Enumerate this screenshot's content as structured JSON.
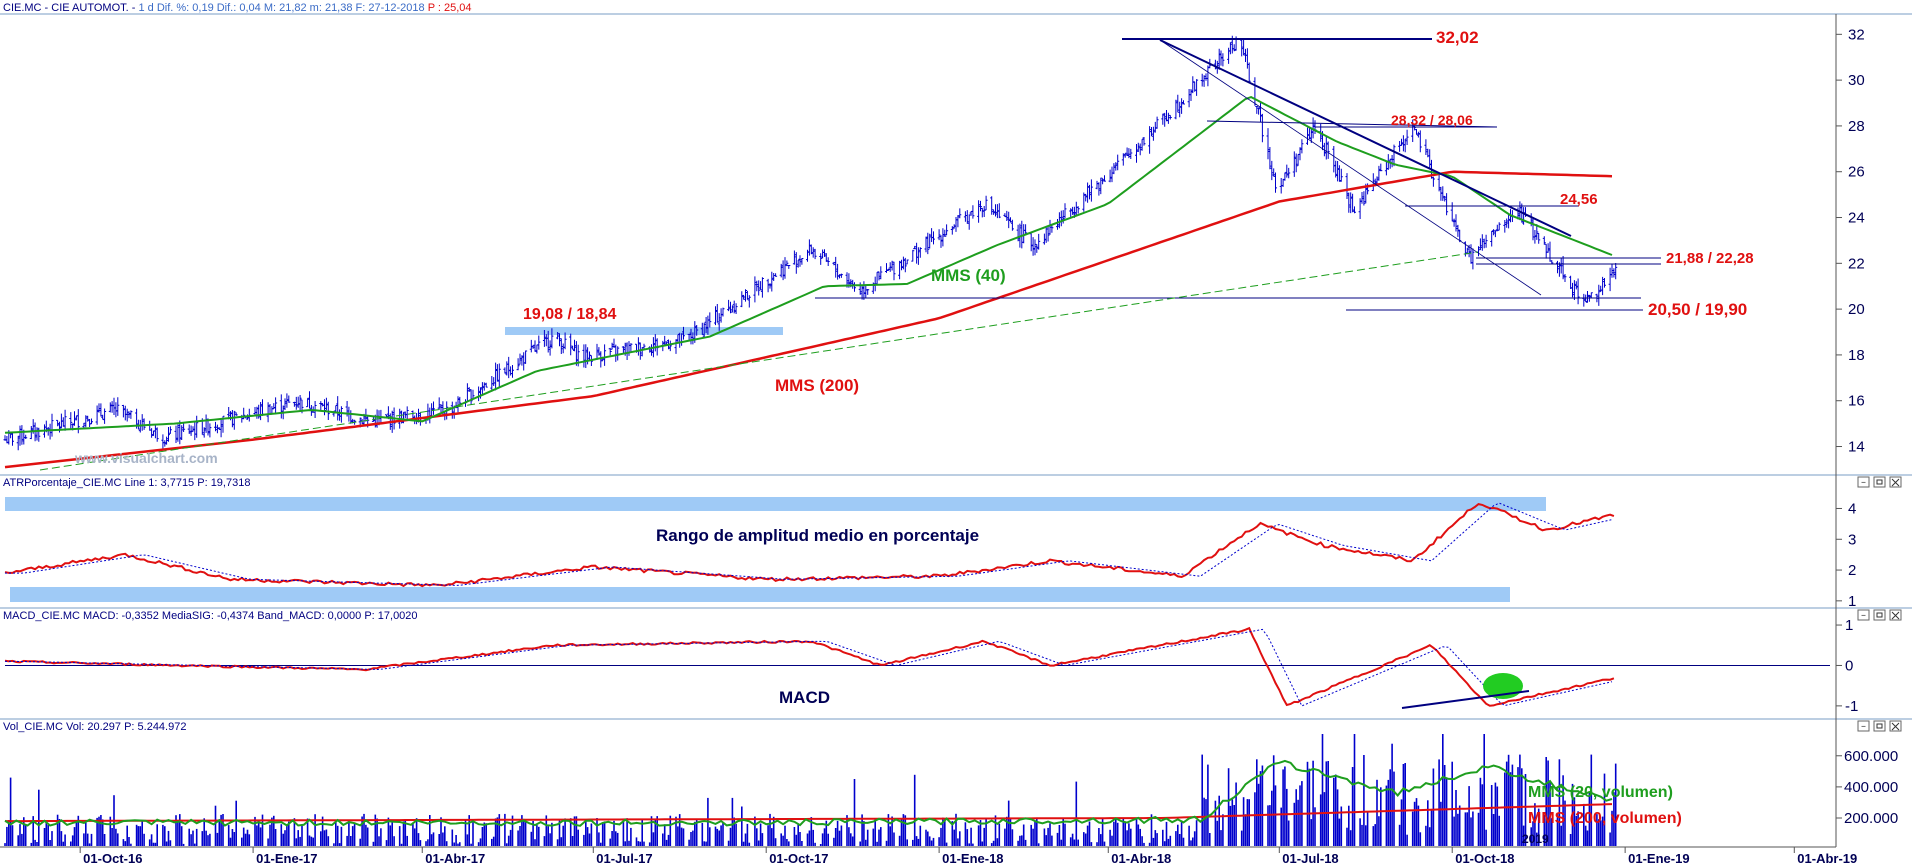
{
  "panels": {
    "price": {
      "header": {
        "ticker": "CIE.MC - CIE AUTOMOT. -",
        "stats": " 1 d  Dif. %: 0,19  Dif.: 0,04  M: 21,82  m: 21,38  F: 27-12-2018",
        "close": "  P : 25,04"
      },
      "watermark": "www.visualchart.com",
      "y_ticks": [
        "14",
        "16",
        "18",
        "20",
        "22",
        "24",
        "26",
        "28",
        "30",
        "32"
      ]
    },
    "atr": {
      "header": {
        "label": "ATRPorcentaje_CIE.MC  Line 1: 3,7715",
        "close": "  P: 19,7318"
      },
      "y_ticks": [
        "1",
        "2",
        "3",
        "4"
      ]
    },
    "macd": {
      "header": {
        "label": "MACD_CIE.MC  MACD: -0,3352  MediaSIG: -0,4374  Band_MACD: 0,0000",
        "close": "  P: 17,0020"
      },
      "y_ticks": [
        "-1",
        "0",
        "1"
      ]
    },
    "vol": {
      "header": {
        "label": "Vol_CIE.MC  Vol: 20.297",
        "close": "  P: 5.244.972"
      },
      "y_ticks": [
        "200.000",
        "400.000",
        "600.000"
      ],
      "year_label": "2019"
    }
  },
  "x_axis": {
    "labels": [
      "01-Oct-16",
      "01-Ene-17",
      "01-Abr-17",
      "01-Jul-17",
      "01-Oct-17",
      "01-Ene-18",
      "01-Abr-18",
      "01-Jul-18",
      "01-Oct-18",
      "01-Ene-19",
      "01-Abr-19"
    ]
  },
  "annotations": {
    "peak": "32,02",
    "res1": "28,32 / 28,06",
    "res2": "24,56",
    "res3": "21,88 / 22,28",
    "sup1": "20,50 / 19,90",
    "sup_old": "19,08 / 18,84",
    "mms40": "MMS (40)",
    "mms200": "MMS (200)",
    "atr_title": "Rango de amplitud medio en porcentaje",
    "macd_title": "MACD",
    "vol20": "MMS (20, volumen)",
    "vol200": "MMS (200, volumen)"
  },
  "colors": {
    "bars": "#0000cc",
    "mms40": "#1e9e1e",
    "mms200": "#e01010",
    "annotation": "#e01010",
    "band": "#9fcaf6",
    "axis_text": "#000055"
  },
  "chart_data": [
    {
      "type": "ohlc",
      "ylim": [
        12.8,
        32.8
      ],
      "x_range": [
        "2016-08-22",
        "2019-04-20"
      ],
      "key_points": [
        {
          "date": "2016-08-22",
          "close": 14.3
        },
        {
          "date": "2016-10-20",
          "close": 15.6
        },
        {
          "date": "2016-11-15",
          "close": 14.4
        },
        {
          "date": "2017-01-25",
          "close": 16.0
        },
        {
          "date": "2017-03-05",
          "close": 15.1
        },
        {
          "date": "2017-04-15",
          "close": 15.6
        },
        {
          "date": "2017-06-10",
          "close": 18.8
        },
        {
          "date": "2017-06-25",
          "close": 17.9
        },
        {
          "date": "2017-08-20",
          "close": 18.7
        },
        {
          "date": "2017-10-05",
          "close": 21.5
        },
        {
          "date": "2017-10-25",
          "close": 22.6
        },
        {
          "date": "2017-11-20",
          "close": 20.8
        },
        {
          "date": "2018-01-25",
          "close": 24.6
        },
        {
          "date": "2018-02-20",
          "close": 22.8
        },
        {
          "date": "2018-04-15",
          "close": 27.0
        },
        {
          "date": "2018-06-10",
          "close": 31.8
        },
        {
          "date": "2018-06-30",
          "close": 25.2
        },
        {
          "date": "2018-07-20",
          "close": 28.0
        },
        {
          "date": "2018-08-10",
          "close": 24.3
        },
        {
          "date": "2018-09-10",
          "close": 28.0
        },
        {
          "date": "2018-09-25",
          "close": 25.0
        },
        {
          "date": "2018-10-10",
          "close": 22.2
        },
        {
          "date": "2018-11-05",
          "close": 24.3
        },
        {
          "date": "2018-11-30",
          "close": 21.5
        },
        {
          "date": "2018-12-10",
          "close": 20.3
        },
        {
          "date": "2018-12-27",
          "close": 21.6
        }
      ],
      "mms40": [
        {
          "date": "2016-08-22",
          "value": 14.6
        },
        {
          "date": "2016-11-20",
          "value": 15.0
        },
        {
          "date": "2017-02-01",
          "value": 15.6
        },
        {
          "date": "2017-04-01",
          "value": 15.1
        },
        {
          "date": "2017-06-01",
          "value": 17.3
        },
        {
          "date": "2017-08-01",
          "value": 18.3
        },
        {
          "date": "2017-09-01",
          "value": 18.8
        },
        {
          "date": "2017-11-01",
          "value": 21.0
        },
        {
          "date": "2017-12-15",
          "value": 21.1
        },
        {
          "date": "2018-02-01",
          "value": 22.8
        },
        {
          "date": "2018-04-01",
          "value": 24.6
        },
        {
          "date": "2018-06-15",
          "value": 29.3
        },
        {
          "date": "2018-08-01",
          "value": 27.3
        },
        {
          "date": "2018-09-01",
          "value": 26.3
        },
        {
          "date": "2018-10-01",
          "value": 25.8
        },
        {
          "date": "2018-11-01",
          "value": 24.1
        },
        {
          "date": "2018-12-27",
          "value": 22.3
        }
      ],
      "mms200": [
        {
          "date": "2016-08-22",
          "value": 13.1
        },
        {
          "date": "2017-01-01",
          "value": 14.3
        },
        {
          "date": "2017-07-01",
          "value": 16.2
        },
        {
          "date": "2018-01-01",
          "value": 19.6
        },
        {
          "date": "2018-07-01",
          "value": 24.7
        },
        {
          "date": "2018-10-01",
          "value": 26.0
        },
        {
          "date": "2018-12-27",
          "value": 25.8
        }
      ]
    },
    {
      "type": "line",
      "name": "ATRPorcentaje_CIE.MC",
      "ylim": [
        0.8,
        4.6
      ],
      "points": [
        {
          "date": "2016-08-22",
          "value": 1.9
        },
        {
          "date": "2016-10-25",
          "value": 2.5
        },
        {
          "date": "2016-12-20",
          "value": 1.7
        },
        {
          "date": "2017-04-10",
          "value": 1.5
        },
        {
          "date": "2017-07-01",
          "value": 2.1
        },
        {
          "date": "2017-10-01",
          "value": 1.7
        },
        {
          "date": "2018-01-01",
          "value": 1.8
        },
        {
          "date": "2018-03-01",
          "value": 2.3
        },
        {
          "date": "2018-05-10",
          "value": 1.8
        },
        {
          "date": "2018-06-20",
          "value": 3.5
        },
        {
          "date": "2018-07-25",
          "value": 2.8
        },
        {
          "date": "2018-09-10",
          "value": 2.3
        },
        {
          "date": "2018-10-15",
          "value": 4.2
        },
        {
          "date": "2018-11-20",
          "value": 3.3
        },
        {
          "date": "2018-12-27",
          "value": 3.8
        }
      ]
    },
    {
      "type": "line",
      "name": "MACD_CIE.MC",
      "ylim": [
        -1.3,
        1.1
      ],
      "points": [
        {
          "date": "2016-08-22",
          "value": 0.1
        },
        {
          "date": "2017-03-01",
          "value": -0.1
        },
        {
          "date": "2017-06-10",
          "value": 0.5
        },
        {
          "date": "2017-10-25",
          "value": 0.6
        },
        {
          "date": "2017-12-01",
          "value": 0.0
        },
        {
          "date": "2018-01-25",
          "value": 0.6
        },
        {
          "date": "2018-03-01",
          "value": 0.0
        },
        {
          "date": "2018-06-15",
          "value": 0.9
        },
        {
          "date": "2018-07-05",
          "value": -1.0
        },
        {
          "date": "2018-09-20",
          "value": 0.5
        },
        {
          "date": "2018-10-20",
          "value": -1.0
        },
        {
          "date": "2018-12-27",
          "value": -0.3
        }
      ]
    },
    {
      "type": "bar",
      "name": "Vol_CIE.MC",
      "ylim": [
        20000,
        740000
      ],
      "regimes": [
        {
          "from": "2016-08-22",
          "to": "2018-05-20",
          "base": 130000
        },
        {
          "from": "2018-05-20",
          "to": "2018-12-27",
          "base": 350000
        }
      ]
    }
  ]
}
